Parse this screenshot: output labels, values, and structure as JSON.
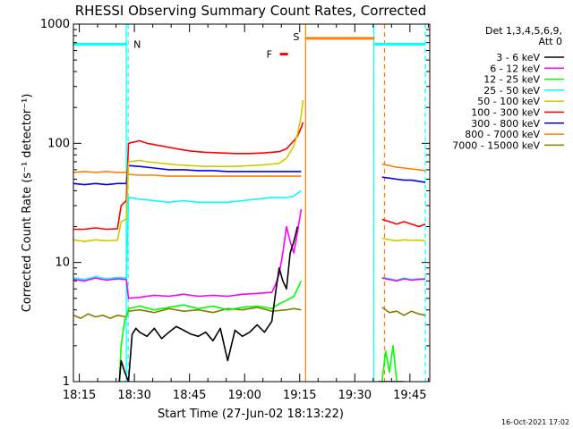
{
  "chart_data": {
    "type": "line",
    "title": "RHESSI Observing Summary Count Rates, Corrected",
    "xlabel": "Start Time (27-Jun-02 18:13:22)",
    "ylabel": "Corrected Count Rate (s⁻¹ detector⁻¹)",
    "x_unit": "minutes since 18:13:22",
    "xlim": [
      0,
      97
    ],
    "ylim": [
      1,
      1000
    ],
    "yscale": "log",
    "x_ticks": [
      {
        "t": 1.6,
        "label": "18:15"
      },
      {
        "t": 16.6,
        "label": "18:30"
      },
      {
        "t": 31.6,
        "label": "18:45"
      },
      {
        "t": 46.6,
        "label": "19:00"
      },
      {
        "t": 61.6,
        "label": "19:15"
      },
      {
        "t": 76.6,
        "label": "19:30"
      },
      {
        "t": 91.6,
        "label": "19:45"
      }
    ],
    "y_ticks": [
      {
        "v": 1,
        "label": "1"
      },
      {
        "v": 10,
        "label": "10"
      },
      {
        "v": 100,
        "label": "100"
      },
      {
        "v": 1000,
        "label": "1000"
      }
    ],
    "legend": {
      "header": [
        "Det 1,3,4,5,6,9,",
        "Att 0"
      ],
      "placement": "right"
    },
    "series": [
      {
        "name": "3 - 6 keV",
        "color": "#000000",
        "segments": [
          {
            "x": [
              12.5,
              13,
              14,
              15,
              16,
              17,
              18,
              20,
              22,
              24,
              26,
              28,
              30,
              32,
              34,
              36,
              38,
              40,
              42,
              44,
              46,
              48,
              50,
              52,
              54,
              55,
              56,
              57,
              58,
              59,
              60,
              61
            ],
            "y": [
              1,
              1.5,
              1.2,
              1,
              2.5,
              2.8,
              2.6,
              2.4,
              2.8,
              2.3,
              2.6,
              2.9,
              2.7,
              2.5,
              2.4,
              2.6,
              2.2,
              2.8,
              1.5,
              2.7,
              2.4,
              2.6,
              3.0,
              2.6,
              3.2,
              5.5,
              9,
              7,
              6,
              12,
              15,
              20
            ]
          },
          {
            "x": [
              83,
              85,
              87,
              89,
              90
            ],
            "y": [
              1,
              1,
              1,
              1,
              1
            ]
          }
        ]
      },
      {
        "name": "6 - 12 keV",
        "color": "#ff00ff",
        "segments": [
          {
            "x": [
              0,
              3,
              6,
              9,
              12,
              14.4,
              15,
              18,
              22,
              26,
              30,
              34,
              38,
              42,
              46,
              50,
              54,
              55,
              56,
              57,
              58,
              59,
              60,
              61,
              62
            ],
            "y": [
              7.2,
              7.0,
              7.4,
              7.1,
              7.3,
              7.2,
              5.0,
              5.1,
              5.3,
              5.2,
              5.4,
              5.2,
              5.3,
              5.2,
              5.4,
              5.5,
              5.6,
              6.5,
              8,
              12,
              20,
              15,
              12,
              18,
              28
            ]
          },
          {
            "x": [
              84,
              86,
              88,
              90,
              92,
              94,
              95.8
            ],
            "y": [
              7.4,
              7.2,
              7.0,
              7.3,
              7.1,
              7.2,
              7.3
            ]
          }
        ]
      },
      {
        "name": "12 - 25 keV",
        "color": "#00ff00",
        "segments": [
          {
            "x": [
              12.5,
              13,
              14,
              14.4,
              15,
              18,
              22,
              26,
              30,
              34,
              38,
              42,
              46,
              50,
              54,
              56,
              58,
              60,
              61,
              62
            ],
            "y": [
              1,
              2,
              3.3,
              3.5,
              4.1,
              4.3,
              4.0,
              4.2,
              4.4,
              4.1,
              4.3,
              4.0,
              4.2,
              4.3,
              4.1,
              4.5,
              4.8,
              5.2,
              6,
              7
            ]
          },
          {
            "x": [
              84,
              85,
              86,
              87,
              88
            ],
            "y": [
              1,
              1.8,
              1.2,
              2.0,
              1
            ]
          }
        ]
      },
      {
        "name": "25 - 50 keV",
        "color": "#00ffff",
        "segments": [
          {
            "x": [
              0,
              3,
              6,
              9,
              12,
              14.4,
              15,
              18,
              22,
              26,
              30,
              34,
              38,
              42,
              46,
              50,
              54,
              58,
              60,
              61,
              62
            ],
            "y": [
              7.4,
              7.2,
              7.6,
              7.3,
              7.5,
              7.4,
              35,
              34,
              33,
              32,
              33,
              32,
              32,
              32,
              33,
              34,
              35,
              35,
              36,
              38,
              40
            ]
          },
          {
            "x": [
              84,
              86,
              88,
              90,
              92,
              94,
              95.8
            ],
            "y": [
              7.5,
              7.3,
              7.1,
              7.4,
              7.2,
              7.3,
              7.2
            ]
          }
        ]
      },
      {
        "name": "50 - 100 keV",
        "color": "#cccc00",
        "segments": [
          {
            "x": [
              0,
              3,
              6,
              9,
              12,
              13,
              14.4,
              15,
              18,
              20,
              24,
              28,
              32,
              36,
              40,
              44,
              48,
              52,
              56,
              58,
              60,
              61,
              62,
              62.5
            ],
            "y": [
              15.5,
              15,
              15.5,
              15.2,
              15.4,
              22,
              23,
              70,
              72,
              70,
              68,
              66,
              65,
              64,
              64,
              64,
              65,
              66,
              68,
              75,
              95,
              120,
              170,
              230
            ]
          },
          {
            "x": [
              84,
              86,
              88,
              90,
              92,
              94,
              95.8
            ],
            "y": [
              16,
              15.5,
              15.2,
              15.5,
              15.3,
              15.4,
              15.2
            ]
          }
        ]
      },
      {
        "name": "100 - 300 keV",
        "color": "#ff0000",
        "segments": [
          {
            "x": [
              0,
              3,
              6,
              9,
              12,
              13,
              14.4,
              15,
              18,
              20,
              24,
              28,
              32,
              36,
              40,
              44,
              48,
              52,
              56,
              58,
              60,
              61,
              62,
              62.5
            ],
            "y": [
              19,
              19,
              19.5,
              19,
              19.2,
              30,
              33,
              100,
              105,
              100,
              95,
              90,
              86,
              84,
              83,
              82,
              82,
              83,
              85,
              90,
              105,
              115,
              135,
              150
            ]
          },
          {
            "x": [
              84,
              86,
              88,
              90,
              92,
              94,
              95.8
            ],
            "y": [
              23,
              22,
              21,
              22,
              21,
              20,
              21
            ]
          }
        ]
      },
      {
        "name": "300 - 800 keV",
        "color": "#0000ff",
        "segments": [
          {
            "x": [
              0,
              3,
              6,
              9,
              12,
              14.4,
              15,
              18,
              22,
              26,
              30,
              34,
              38,
              42,
              46,
              50,
              54,
              58,
              60,
              62
            ],
            "y": [
              46,
              45,
              46,
              45,
              46,
              46,
              65,
              64,
              62,
              60,
              60,
              59,
              59,
              58,
              58,
              58,
              58,
              58,
              58,
              58
            ]
          },
          {
            "x": [
              84,
              86,
              88,
              90,
              92,
              94,
              95.8
            ],
            "y": [
              52,
              51,
              50,
              49,
              49,
              48,
              47
            ]
          }
        ]
      },
      {
        "name": "800 - 7000 keV",
        "color": "#ff8000",
        "segments": [
          {
            "x": [
              0,
              3,
              6,
              9,
              12,
              14.4,
              15,
              18,
              22,
              26,
              30,
              34,
              38,
              42,
              46,
              50,
              54,
              58,
              60,
              62
            ],
            "y": [
              57,
              58,
              57,
              58,
              57,
              57,
              55,
              54,
              54,
              53,
              53,
              53,
              53,
              53,
              53,
              53,
              53,
              53,
              53,
              53
            ]
          },
          {
            "x": [
              84,
              86,
              88,
              90,
              92,
              94,
              95.8
            ],
            "y": [
              67,
              65,
              63,
              62,
              61,
              60,
              59
            ]
          }
        ]
      },
      {
        "name": "7000 - 15000 keV",
        "color": "#808000",
        "segments": [
          {
            "x": [
              0,
              2,
              4,
              6,
              8,
              10,
              12,
              14.4,
              15,
              18,
              22,
              26,
              30,
              34,
              38,
              42,
              46,
              50,
              54,
              58,
              60,
              62
            ],
            "y": [
              3.6,
              3.4,
              3.7,
              3.5,
              3.6,
              3.4,
              3.6,
              3.5,
              3.9,
              4.0,
              3.8,
              4.1,
              3.9,
              4.0,
              3.8,
              4.1,
              4.0,
              4.2,
              3.9,
              4.0,
              4.1,
              4.0
            ]
          },
          {
            "x": [
              84,
              86,
              88,
              90,
              92,
              94,
              95.8
            ],
            "y": [
              4.2,
              3.8,
              3.9,
              3.6,
              3.9,
              3.7,
              3.6
            ]
          }
        ]
      }
    ],
    "annotations": {
      "labels": [
        {
          "text": "N",
          "color": "#00ffff"
        },
        {
          "text": "F",
          "color": "#ff0000"
        },
        {
          "text": "S",
          "color": "#ff8000"
        }
      ],
      "night_bars": [
        {
          "label_ref": 0,
          "x": [
            0,
            14.4
          ],
          "y": 680,
          "color": "#00ffff"
        },
        {
          "label_ref": 0,
          "x": [
            82,
            95.8
          ],
          "y": 680,
          "color": "#00ffff"
        }
      ],
      "flare_bar": {
        "x": [
          56.2,
          58.4
        ],
        "y": 560,
        "color": "#ff0000"
      },
      "saa_bar": {
        "x": [
          63.2,
          82
        ],
        "y": 760,
        "color": "#ff8000"
      },
      "solid_lines": [
        {
          "x": 14.4,
          "color": "#00ffff"
        },
        {
          "x": 63.2,
          "color": "#ff8000"
        },
        {
          "x": 81.8,
          "color": "#00ffff"
        }
      ],
      "dashed_lines": [
        {
          "x": 14.9,
          "color": "#00ffff"
        },
        {
          "x": 84.7,
          "color": "#ff8000"
        },
        {
          "x": 95.8,
          "color": "#00ffff"
        }
      ]
    },
    "grid": false
  },
  "timestamp": "16-Oct-2021 17:02"
}
